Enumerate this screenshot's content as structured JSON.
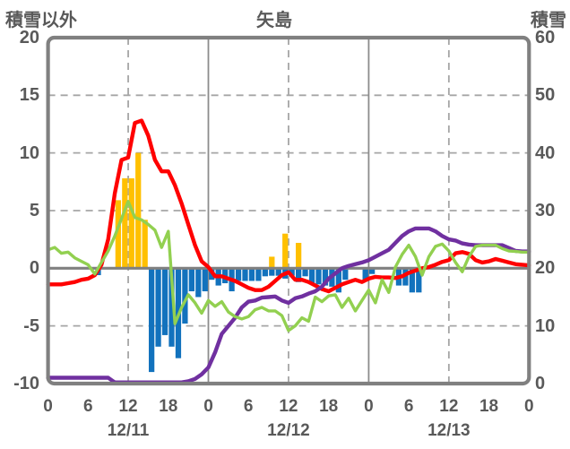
{
  "title": "矢島",
  "left_axis": {
    "label": "積雪以外",
    "ticks": [
      "20",
      "15",
      "10",
      "5",
      "0",
      "-5",
      "-10"
    ]
  },
  "right_axis": {
    "label": "積雪",
    "ticks": [
      "60",
      "50",
      "40",
      "30",
      "20",
      "10",
      "0"
    ]
  },
  "x_axis": {
    "hour_ticks": [
      "0",
      "6",
      "12",
      "18",
      "0",
      "6",
      "12",
      "18",
      "0",
      "6",
      "12",
      "18",
      "0"
    ],
    "date_labels": [
      "12/11",
      "12/12",
      "12/13"
    ]
  },
  "colors": {
    "red_line": "#FF0000",
    "green_line": "#92D050",
    "purple_line": "#7030A0",
    "yellow_bars": "#FFC000",
    "blue_bars": "#1272BD",
    "frame": "#808080",
    "grid": "#A6A6A6",
    "zero_line": "#808080",
    "text": "#595959"
  },
  "chart_data": {
    "type": "mixed bar + line, dual axis",
    "title": "矢島",
    "x_description": "hourly values, hours 0-72 counted from 12/11 00:00 through 12/13 24:00",
    "x_range": [
      0,
      72
    ],
    "left_axis": {
      "label": "積雪以外",
      "range": [
        -10,
        20
      ],
      "tick_step": 5
    },
    "right_axis": {
      "label": "積雪",
      "range": [
        0,
        60
      ],
      "tick_step": 10
    },
    "grid": {
      "horizontal_dashed_left_values": [
        15,
        10,
        5,
        -5
      ],
      "zero_line_left_value": 0,
      "vertical_dashed_hours": [
        12,
        36,
        60
      ],
      "vertical_solid_hours": [
        24,
        48
      ]
    },
    "legend": "none shown",
    "series": [
      {
        "name": "red-line",
        "type": "line",
        "axis": "left",
        "color_key": "red_line",
        "values": [
          -1.4,
          -1.4,
          -1.4,
          -1.3,
          -1.2,
          -1.0,
          -0.9,
          -0.6,
          0.3,
          2.5,
          6.5,
          9.4,
          9.6,
          12.6,
          12.8,
          11.5,
          9.4,
          8.4,
          8.4,
          7.2,
          5.6,
          3.8,
          2.0,
          0.6,
          0.1,
          -0.7,
          -0.7,
          -0.9,
          -1.1,
          -1.4,
          -1.7,
          -1.9,
          -1.9,
          -1.6,
          -1.1,
          -0.6,
          -0.35,
          -1.0,
          -1.0,
          -1.2,
          -1.5,
          -1.8,
          -2.0,
          -1.7,
          -1.4,
          -1.2,
          -1.0,
          -1.2,
          -0.9,
          -0.75,
          -0.8,
          -0.8,
          -0.85,
          -0.7,
          -0.4,
          -0.2,
          0.0,
          0.1,
          0.3,
          0.55,
          0.7,
          1.3,
          1.4,
          1.25,
          0.7,
          0.5,
          0.6,
          0.8,
          0.65,
          0.5,
          0.35,
          0.3,
          0.25
        ]
      },
      {
        "name": "green-line",
        "type": "line",
        "axis": "left",
        "color_key": "green_line",
        "values": [
          1.6,
          1.8,
          1.3,
          1.4,
          0.9,
          0.6,
          0.3,
          -0.5,
          0.5,
          1.5,
          2.8,
          4.3,
          5.8,
          4.4,
          4.2,
          3.8,
          3.3,
          1.8,
          3.2,
          -4.8,
          -3.4,
          -2.3,
          -3.0,
          -3.9,
          -2.8,
          -3.3,
          -2.9,
          -3.8,
          -4.2,
          -4.4,
          -4.2,
          -3.6,
          -3.4,
          -3.7,
          -3.7,
          -4.1,
          -5.4,
          -5.0,
          -4.3,
          -4.6,
          -2.5,
          -2.9,
          -2.4,
          -2.3,
          -3.4,
          -2.6,
          -3.7,
          -2.8,
          -1.9,
          -3.0,
          -1.0,
          -2.1,
          0.1,
          1.2,
          2.0,
          1.0,
          -0.6,
          1.0,
          1.9,
          2.1,
          1.5,
          0.5,
          -0.3,
          1.0,
          1.9,
          2.0,
          2.0,
          2.0,
          1.7,
          1.5,
          1.45,
          1.4,
          1.4
        ]
      },
      {
        "name": "purple-line",
        "type": "line",
        "axis": "right",
        "color_key": "purple_line",
        "values": [
          1.0,
          1.0,
          1.0,
          1.0,
          1.0,
          1.0,
          1.0,
          1.0,
          1.0,
          1.0,
          0.2,
          0.2,
          0.2,
          0.2,
          0.2,
          0.2,
          0.2,
          0.2,
          0.2,
          0.2,
          0.2,
          0.4,
          0.8,
          1.6,
          2.8,
          5.4,
          8.6,
          10.0,
          11.4,
          13.2,
          14.2,
          14.4,
          14.9,
          15.0,
          15.1,
          14.4,
          14.0,
          14.8,
          15.1,
          15.6,
          16.0,
          16.8,
          18.2,
          19.1,
          20.0,
          20.4,
          20.7,
          21.0,
          21.4,
          22.0,
          22.6,
          23.2,
          24.4,
          25.6,
          26.4,
          26.9,
          26.9,
          26.9,
          26.4,
          25.6,
          25.0,
          24.8,
          24.3,
          24.1,
          24.0,
          24.0,
          24.0,
          24.0,
          24.0,
          23.5,
          23.0,
          22.9,
          22.9
        ]
      },
      {
        "name": "yellow-bars",
        "type": "bar",
        "axis": "left",
        "color_key": "yellow_bars",
        "points": [
          [
            10,
            5.9
          ],
          [
            11,
            7.8
          ],
          [
            12,
            7.8
          ],
          [
            13,
            10.0
          ],
          [
            14,
            4.2
          ],
          [
            33,
            1.0
          ],
          [
            35,
            3.0
          ],
          [
            37,
            2.2
          ]
        ]
      },
      {
        "name": "blue-bars",
        "type": "bar",
        "axis": "left",
        "color_key": "blue_bars",
        "points": [
          [
            7,
            -0.6
          ],
          [
            15,
            -9.0
          ],
          [
            16,
            -6.8
          ],
          [
            17,
            -5.8
          ],
          [
            18,
            -6.8
          ],
          [
            19,
            -7.8
          ],
          [
            20,
            -4.8
          ],
          [
            21,
            -2.0
          ],
          [
            22,
            -2.5
          ],
          [
            23,
            -2.0
          ],
          [
            24,
            -1.0
          ],
          [
            25,
            -1.5
          ],
          [
            26,
            -1.3
          ],
          [
            27,
            -2.0
          ],
          [
            28,
            -1.1
          ],
          [
            29,
            -1.1
          ],
          [
            30,
            -1.1
          ],
          [
            31,
            -1.1
          ],
          [
            32,
            -0.7
          ],
          [
            33,
            -0.65
          ],
          [
            34,
            -0.65
          ],
          [
            35,
            -0.9
          ],
          [
            36,
            -0.65
          ],
          [
            37,
            -1.2
          ],
          [
            38,
            -0.7
          ],
          [
            39,
            -1.4
          ],
          [
            40,
            -1.4
          ],
          [
            41,
            -1.5
          ],
          [
            42,
            -1.6
          ],
          [
            43,
            -2.1
          ],
          [
            44,
            -1.0
          ],
          [
            47,
            -1.0
          ],
          [
            48,
            -0.5
          ],
          [
            52,
            -1.5
          ],
          [
            53,
            -1.5
          ],
          [
            54,
            -2.1
          ],
          [
            55,
            -2.1
          ]
        ]
      }
    ]
  }
}
